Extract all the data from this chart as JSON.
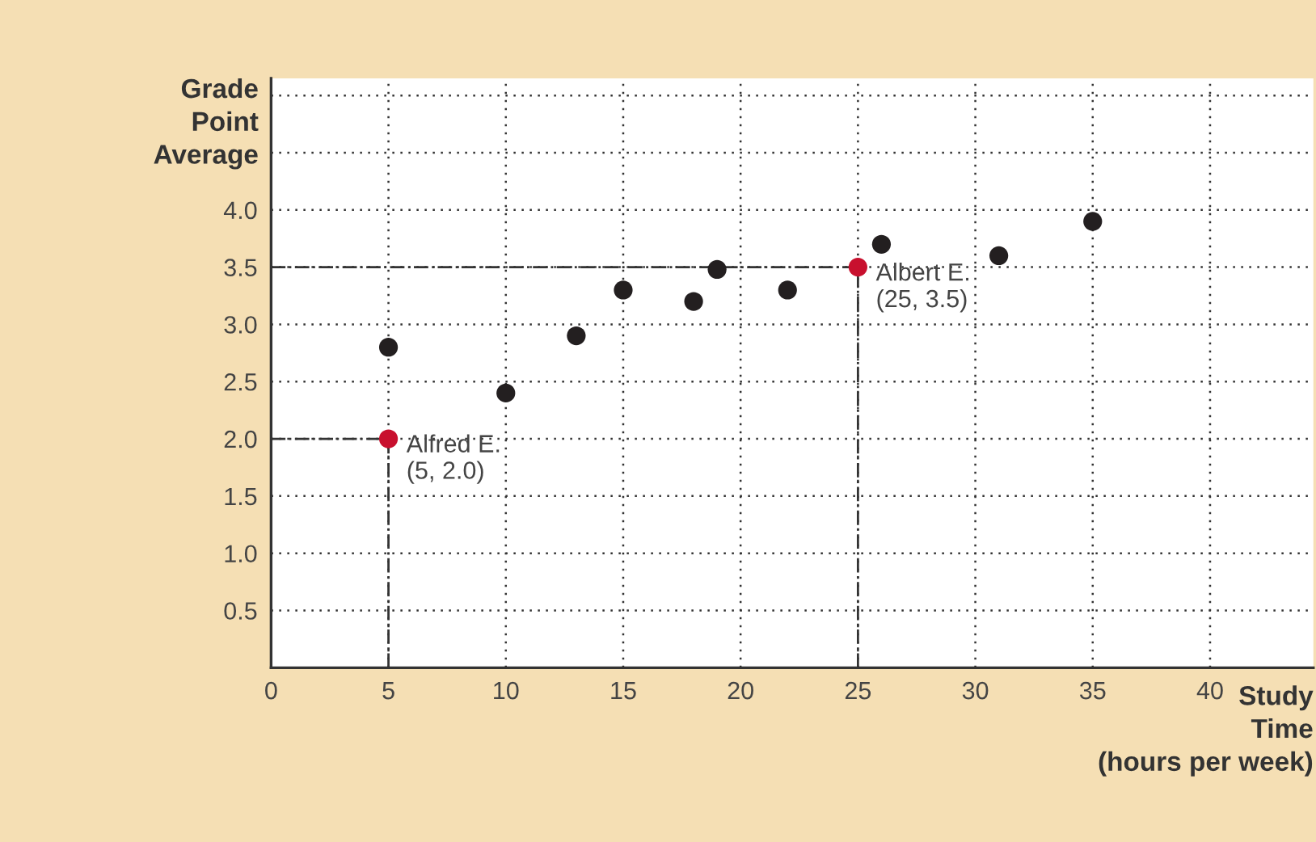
{
  "chart_data": {
    "type": "scatter",
    "xlabel": "Study\nTime\n(hours per week)",
    "ylabel": "Grade\nPoint\nAverage",
    "series": [
      {
        "color": "#231f20",
        "x": [
          5,
          10,
          13,
          15,
          18,
          19,
          22,
          26,
          31,
          35
        ],
        "values": [
          2.8,
          2.4,
          2.9,
          3.3,
          3.2,
          3.48,
          3.3,
          3.7,
          3.6,
          3.9
        ]
      },
      {
        "color": "#c8102e",
        "x": [
          5,
          25
        ],
        "values": [
          2.0,
          3.5
        ]
      }
    ],
    "annotations": [
      {
        "text": "Alfred E.\n(5, 2.0)",
        "x": 5,
        "y": 2.0
      },
      {
        "text": "Albert E.\n(25, 3.5)",
        "x": 25,
        "y": 3.5
      }
    ],
    "xlim": [
      0,
      44.4
    ],
    "ylim": [
      0,
      5.15
    ],
    "xticks": [
      0,
      5,
      10,
      15,
      20,
      25,
      30,
      35,
      40
    ],
    "yticks": [
      0.5,
      {
        "value": 1,
        "label": "1.0"
      },
      1.5,
      {
        "value": 2,
        "label": "2.0"
      },
      2.5,
      {
        "value": 3,
        "label": "3.0"
      },
      3.5,
      {
        "value": 4,
        "label": "4.0"
      },
      {
        "value": 4.5,
        "label": null
      },
      {
        "value": 5.0,
        "label": null
      }
    ],
    "grid": true,
    "marker": "circle"
  }
}
